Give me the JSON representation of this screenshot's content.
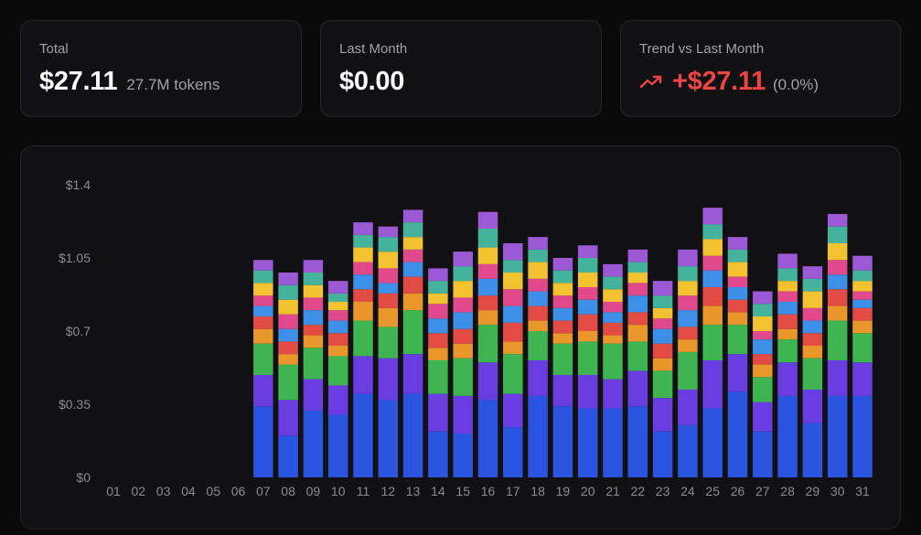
{
  "cards": {
    "total": {
      "label": "Total",
      "value": "$27.11",
      "sub": "27.7M tokens"
    },
    "last_month": {
      "label": "Last Month",
      "value": "$0.00"
    },
    "trend": {
      "label": "Trend vs Last Month",
      "value": "+$27.11",
      "sub": "(0.0%)",
      "icon": "trending-up-icon",
      "color": "#ef4444"
    }
  },
  "colors": {
    "segments": [
      "#2b55e0",
      "#6a3de0",
      "#3fb552",
      "#e9962b",
      "#e34b45",
      "#3d8fe8",
      "#e04a8c",
      "#f2c230",
      "#45b39c",
      "#9b59d6"
    ]
  },
  "chart_data": {
    "type": "bar",
    "stacked": true,
    "ylim": [
      0,
      1.4
    ],
    "yticks": [
      "$0",
      "$0.35",
      "$0.7",
      "$1.05",
      "$1.4"
    ],
    "ytick_values": [
      0,
      0.35,
      0.7,
      1.05,
      1.4
    ],
    "grid": false,
    "categories": [
      "01",
      "02",
      "03",
      "04",
      "05",
      "06",
      "07",
      "08",
      "09",
      "10",
      "11",
      "12",
      "13",
      "14",
      "15",
      "16",
      "17",
      "18",
      "19",
      "20",
      "21",
      "22",
      "23",
      "24",
      "25",
      "26",
      "27",
      "28",
      "29",
      "30",
      "31"
    ],
    "series": [
      {
        "values": [
          0,
          0,
          0,
          0,
          0,
          0,
          0.34,
          0.2,
          0.32,
          0.3,
          0.4,
          0.37,
          0.4,
          0.22,
          0.21,
          0.37,
          0.24,
          0.39,
          0.34,
          0.33,
          0.33,
          0.34,
          0.22,
          0.25,
          0.33,
          0.41,
          0.22,
          0.39,
          0.26,
          0.39,
          0.39
        ]
      },
      {
        "values": [
          0,
          0,
          0,
          0,
          0,
          0,
          0.15,
          0.17,
          0.15,
          0.14,
          0.18,
          0.2,
          0.19,
          0.18,
          0.18,
          0.18,
          0.16,
          0.17,
          0.15,
          0.16,
          0.14,
          0.17,
          0.16,
          0.17,
          0.23,
          0.18,
          0.14,
          0.16,
          0.16,
          0.17,
          0.16
        ]
      },
      {
        "values": [
          0,
          0,
          0,
          0,
          0,
          0,
          0.15,
          0.17,
          0.15,
          0.14,
          0.17,
          0.15,
          0.21,
          0.16,
          0.18,
          0.18,
          0.19,
          0.14,
          0.15,
          0.16,
          0.17,
          0.14,
          0.13,
          0.18,
          0.17,
          0.14,
          0.12,
          0.11,
          0.15,
          0.19,
          0.14
        ]
      },
      {
        "values": [
          0,
          0,
          0,
          0,
          0,
          0,
          0.07,
          0.05,
          0.06,
          0.05,
          0.09,
          0.09,
          0.08,
          0.06,
          0.07,
          0.07,
          0.06,
          0.05,
          0.05,
          0.05,
          0.04,
          0.08,
          0.06,
          0.06,
          0.09,
          0.06,
          0.06,
          0.05,
          0.06,
          0.07,
          0.06
        ]
      },
      {
        "values": [
          0,
          0,
          0,
          0,
          0,
          0,
          0.06,
          0.06,
          0.05,
          0.06,
          0.06,
          0.07,
          0.08,
          0.07,
          0.07,
          0.07,
          0.09,
          0.07,
          0.06,
          0.08,
          0.06,
          0.06,
          0.07,
          0.06,
          0.09,
          0.06,
          0.05,
          0.07,
          0.06,
          0.08,
          0.06
        ]
      },
      {
        "values": [
          0,
          0,
          0,
          0,
          0,
          0,
          0.05,
          0.06,
          0.07,
          0.06,
          0.07,
          0.05,
          0.07,
          0.07,
          0.08,
          0.08,
          0.08,
          0.07,
          0.06,
          0.07,
          0.05,
          0.08,
          0.07,
          0.08,
          0.08,
          0.06,
          0.07,
          0.06,
          0.06,
          0.07,
          0.04
        ]
      },
      {
        "values": [
          0,
          0,
          0,
          0,
          0,
          0,
          0.05,
          0.07,
          0.06,
          0.05,
          0.06,
          0.07,
          0.06,
          0.07,
          0.07,
          0.07,
          0.08,
          0.06,
          0.06,
          0.06,
          0.05,
          0.06,
          0.05,
          0.07,
          0.07,
          0.05,
          0.04,
          0.05,
          0.06,
          0.07,
          0.04
        ]
      },
      {
        "values": [
          0,
          0,
          0,
          0,
          0,
          0,
          0.06,
          0.07,
          0.06,
          0.04,
          0.07,
          0.08,
          0.06,
          0.05,
          0.08,
          0.08,
          0.08,
          0.08,
          0.06,
          0.07,
          0.06,
          0.05,
          0.05,
          0.07,
          0.08,
          0.07,
          0.07,
          0.05,
          0.08,
          0.08,
          0.05
        ]
      },
      {
        "values": [
          0,
          0,
          0,
          0,
          0,
          0,
          0.06,
          0.07,
          0.06,
          0.04,
          0.06,
          0.07,
          0.07,
          0.06,
          0.07,
          0.09,
          0.06,
          0.06,
          0.06,
          0.07,
          0.06,
          0.05,
          0.06,
          0.07,
          0.07,
          0.06,
          0.06,
          0.06,
          0.06,
          0.08,
          0.05
        ]
      },
      {
        "values": [
          0,
          0,
          0,
          0,
          0,
          0,
          0.05,
          0.06,
          0.06,
          0.06,
          0.06,
          0.05,
          0.06,
          0.06,
          0.07,
          0.08,
          0.08,
          0.06,
          0.06,
          0.06,
          0.06,
          0.06,
          0.07,
          0.08,
          0.08,
          0.06,
          0.06,
          0.07,
          0.06,
          0.06,
          0.07
        ]
      }
    ]
  }
}
